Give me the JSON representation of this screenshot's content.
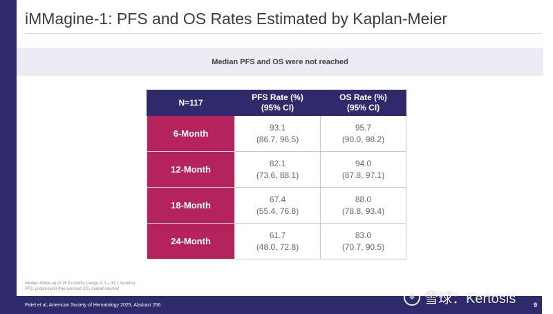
{
  "slide": {
    "title": "iMMagine-1: PFS and OS Rates Estimated by Kaplan-Meier",
    "banner": "Median PFS and OS were not reached",
    "page_number": "9"
  },
  "table": {
    "headers": {
      "n": "N=117",
      "pfs_line1": "PFS Rate (%)",
      "pfs_line2": "(95% CI)",
      "os_line1": "OS Rate (%)",
      "os_line2": "(95% CI)"
    },
    "rows": [
      {
        "label": "6-Month",
        "pfs": "93.1",
        "pfs_ci": "(86.7, 96.5)",
        "os": "95.7",
        "os_ci": "(90.0, 98.2)"
      },
      {
        "label": "12-Month",
        "pfs": "82.1",
        "pfs_ci": "(73.6, 88.1)",
        "os": "94.0",
        "os_ci": "(87.8, 97.1)"
      },
      {
        "label": "18-Month",
        "pfs": "67.4",
        "pfs_ci": "(55.4, 76.8)",
        "os": "88.0",
        "os_ci": "(78.8, 93.4)"
      },
      {
        "label": "24-Month",
        "pfs": "61.7",
        "pfs_ci": "(48.0, 72.8)",
        "os": "83.0",
        "os_ci": "(70.7, 90.5)"
      }
    ]
  },
  "footnotes": {
    "line1": "Median follow-up of 15.9 months (range: 0.3 – 33.1 months)",
    "line2": "PFS, progression-free survival; OS, overall survival"
  },
  "citation": "Patel et al, American Society of Hematology 2025, Abstract 256",
  "watermark": "雪球：Kertosis",
  "colors": {
    "navy": "#2e2a6b",
    "magenta": "#b5235d",
    "banner_bg": "#ebebf4"
  }
}
